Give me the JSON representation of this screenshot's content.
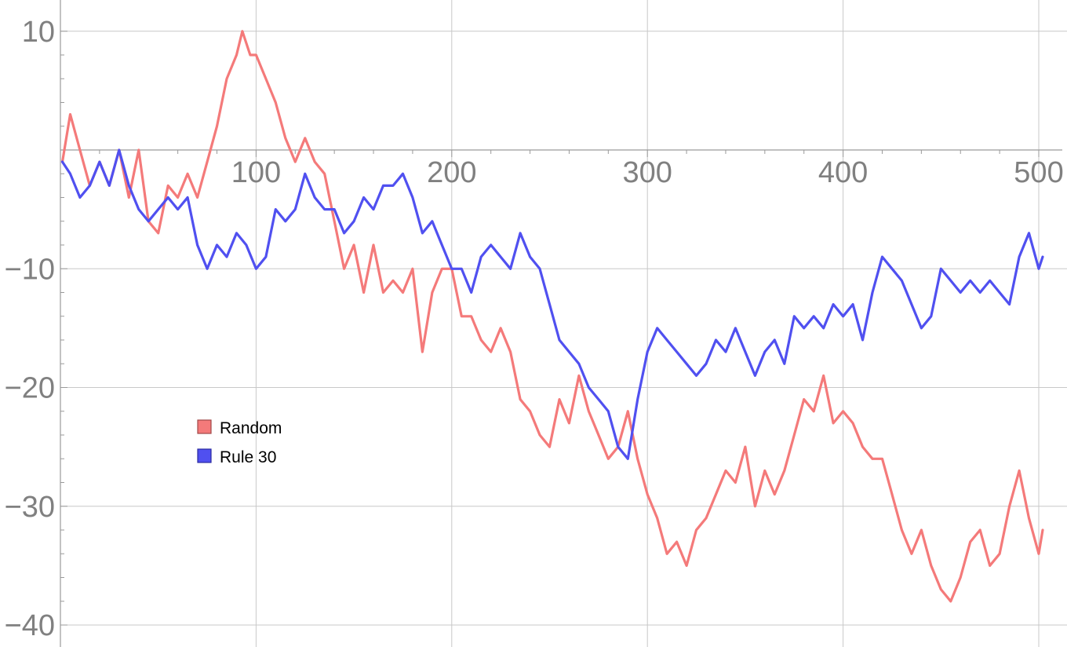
{
  "chart_data": {
    "type": "line",
    "title": "",
    "xlabel": "",
    "ylabel": "",
    "xlim": [
      0,
      510
    ],
    "ylim": [
      -40,
      12
    ],
    "grid": true,
    "legend_position": "lower-left",
    "x_ticks": [
      100,
      200,
      300,
      400,
      500
    ],
    "x_tick_labels": [
      "100",
      "200",
      "300",
      "400",
      "500"
    ],
    "y_ticks": [
      10,
      -10,
      -20,
      -30,
      -40
    ],
    "y_tick_labels": [
      "10",
      "−10",
      "−20",
      "−30",
      "−40"
    ],
    "series": [
      {
        "name": "Random",
        "color": "#f47a7a",
        "points": [
          [
            1,
            -1
          ],
          [
            5,
            3
          ],
          [
            10,
            0
          ],
          [
            15,
            -3
          ],
          [
            20,
            -1
          ],
          [
            25,
            -3
          ],
          [
            30,
            0
          ],
          [
            35,
            -4
          ],
          [
            40,
            0
          ],
          [
            45,
            -6
          ],
          [
            50,
            -7
          ],
          [
            55,
            -3
          ],
          [
            60,
            -4
          ],
          [
            65,
            -2
          ],
          [
            70,
            -4
          ],
          [
            75,
            -1
          ],
          [
            80,
            2
          ],
          [
            85,
            6
          ],
          [
            90,
            8
          ],
          [
            93,
            10
          ],
          [
            97,
            8
          ],
          [
            100,
            8
          ],
          [
            105,
            6
          ],
          [
            110,
            4
          ],
          [
            115,
            1
          ],
          [
            120,
            -1
          ],
          [
            125,
            1
          ],
          [
            130,
            -1
          ],
          [
            135,
            -2
          ],
          [
            140,
            -6
          ],
          [
            145,
            -10
          ],
          [
            150,
            -8
          ],
          [
            155,
            -12
          ],
          [
            160,
            -8
          ],
          [
            165,
            -12
          ],
          [
            170,
            -11
          ],
          [
            175,
            -12
          ],
          [
            180,
            -10
          ],
          [
            185,
            -17
          ],
          [
            190,
            -12
          ],
          [
            195,
            -10
          ],
          [
            200,
            -10
          ],
          [
            205,
            -14
          ],
          [
            210,
            -14
          ],
          [
            215,
            -16
          ],
          [
            220,
            -17
          ],
          [
            225,
            -15
          ],
          [
            230,
            -17
          ],
          [
            235,
            -21
          ],
          [
            240,
            -22
          ],
          [
            245,
            -24
          ],
          [
            250,
            -25
          ],
          [
            255,
            -21
          ],
          [
            260,
            -23
          ],
          [
            265,
            -19
          ],
          [
            270,
            -22
          ],
          [
            275,
            -24
          ],
          [
            280,
            -26
          ],
          [
            285,
            -25
          ],
          [
            290,
            -22
          ],
          [
            295,
            -26
          ],
          [
            300,
            -29
          ],
          [
            305,
            -31
          ],
          [
            310,
            -34
          ],
          [
            315,
            -33
          ],
          [
            320,
            -35
          ],
          [
            325,
            -32
          ],
          [
            330,
            -31
          ],
          [
            335,
            -29
          ],
          [
            340,
            -27
          ],
          [
            345,
            -28
          ],
          [
            350,
            -25
          ],
          [
            355,
            -30
          ],
          [
            360,
            -27
          ],
          [
            365,
            -29
          ],
          [
            370,
            -27
          ],
          [
            375,
            -24
          ],
          [
            380,
            -21
          ],
          [
            385,
            -22
          ],
          [
            390,
            -19
          ],
          [
            395,
            -23
          ],
          [
            400,
            -22
          ],
          [
            405,
            -23
          ],
          [
            410,
            -25
          ],
          [
            415,
            -26
          ],
          [
            420,
            -26
          ],
          [
            425,
            -29
          ],
          [
            430,
            -32
          ],
          [
            435,
            -34
          ],
          [
            440,
            -32
          ],
          [
            445,
            -35
          ],
          [
            450,
            -37
          ],
          [
            455,
            -38
          ],
          [
            460,
            -36
          ],
          [
            465,
            -33
          ],
          [
            470,
            -32
          ],
          [
            475,
            -35
          ],
          [
            480,
            -34
          ],
          [
            485,
            -30
          ],
          [
            490,
            -27
          ],
          [
            495,
            -31
          ],
          [
            500,
            -34
          ],
          [
            502,
            -32
          ]
        ]
      },
      {
        "name": "Rule 30",
        "color": "#5050f0",
        "points": [
          [
            1,
            -1
          ],
          [
            5,
            -2
          ],
          [
            10,
            -4
          ],
          [
            15,
            -3
          ],
          [
            20,
            -1
          ],
          [
            25,
            -3
          ],
          [
            30,
            0
          ],
          [
            35,
            -3
          ],
          [
            40,
            -5
          ],
          [
            45,
            -6
          ],
          [
            50,
            -5
          ],
          [
            55,
            -4
          ],
          [
            60,
            -5
          ],
          [
            65,
            -4
          ],
          [
            70,
            -8
          ],
          [
            75,
            -10
          ],
          [
            80,
            -8
          ],
          [
            85,
            -9
          ],
          [
            90,
            -7
          ],
          [
            95,
            -8
          ],
          [
            100,
            -10
          ],
          [
            105,
            -9
          ],
          [
            110,
            -5
          ],
          [
            115,
            -6
          ],
          [
            120,
            -5
          ],
          [
            125,
            -2
          ],
          [
            130,
            -4
          ],
          [
            135,
            -5
          ],
          [
            140,
            -5
          ],
          [
            145,
            -7
          ],
          [
            150,
            -6
          ],
          [
            155,
            -4
          ],
          [
            160,
            -5
          ],
          [
            165,
            -3
          ],
          [
            170,
            -3
          ],
          [
            175,
            -2
          ],
          [
            180,
            -4
          ],
          [
            185,
            -7
          ],
          [
            190,
            -6
          ],
          [
            195,
            -8
          ],
          [
            200,
            -10
          ],
          [
            205,
            -10
          ],
          [
            210,
            -12
          ],
          [
            215,
            -9
          ],
          [
            220,
            -8
          ],
          [
            225,
            -9
          ],
          [
            230,
            -10
          ],
          [
            235,
            -7
          ],
          [
            240,
            -9
          ],
          [
            245,
            -10
          ],
          [
            250,
            -13
          ],
          [
            255,
            -16
          ],
          [
            260,
            -17
          ],
          [
            265,
            -18
          ],
          [
            270,
            -20
          ],
          [
            275,
            -21
          ],
          [
            280,
            -22
          ],
          [
            285,
            -25
          ],
          [
            290,
            -26
          ],
          [
            295,
            -21
          ],
          [
            300,
            -17
          ],
          [
            305,
            -15
          ],
          [
            310,
            -16
          ],
          [
            315,
            -17
          ],
          [
            320,
            -18
          ],
          [
            325,
            -19
          ],
          [
            330,
            -18
          ],
          [
            335,
            -16
          ],
          [
            340,
            -17
          ],
          [
            345,
            -15
          ],
          [
            350,
            -17
          ],
          [
            355,
            -19
          ],
          [
            360,
            -17
          ],
          [
            365,
            -16
          ],
          [
            370,
            -18
          ],
          [
            375,
            -14
          ],
          [
            380,
            -15
          ],
          [
            385,
            -14
          ],
          [
            390,
            -15
          ],
          [
            395,
            -13
          ],
          [
            400,
            -14
          ],
          [
            405,
            -13
          ],
          [
            410,
            -16
          ],
          [
            415,
            -12
          ],
          [
            420,
            -9
          ],
          [
            425,
            -10
          ],
          [
            430,
            -11
          ],
          [
            435,
            -13
          ],
          [
            440,
            -15
          ],
          [
            445,
            -14
          ],
          [
            450,
            -10
          ],
          [
            455,
            -11
          ],
          [
            460,
            -12
          ],
          [
            465,
            -11
          ],
          [
            470,
            -12
          ],
          [
            475,
            -11
          ],
          [
            480,
            -12
          ],
          [
            485,
            -13
          ],
          [
            490,
            -9
          ],
          [
            495,
            -7
          ],
          [
            500,
            -10
          ],
          [
            502,
            -9
          ]
        ]
      }
    ]
  }
}
